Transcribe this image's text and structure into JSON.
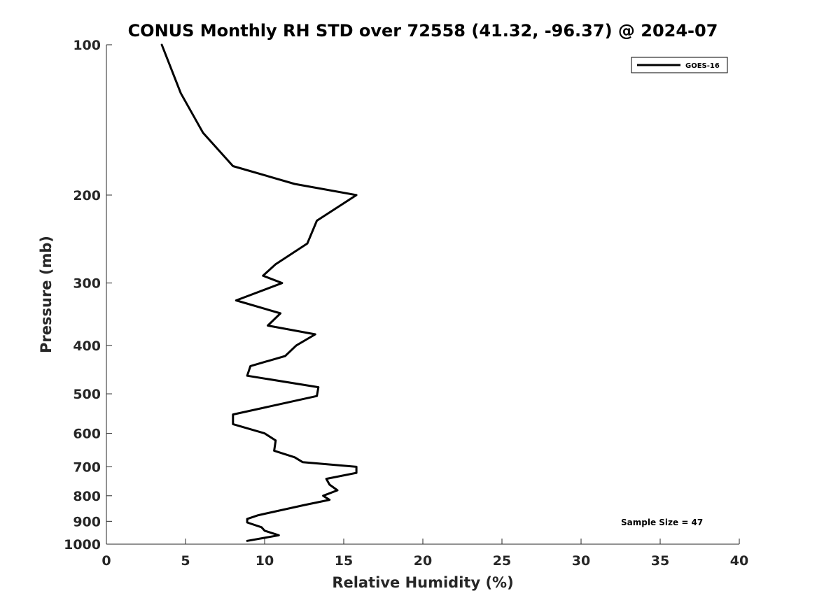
{
  "chart_data": {
    "type": "line",
    "title": "CONUS Monthly RH STD over 72558 (41.32, -96.37) @ 2024-07",
    "xlabel": "Relative Humidity (%)",
    "ylabel": "Pressure (mb)",
    "xlim": [
      0,
      40
    ],
    "ylim": [
      100,
      1000
    ],
    "y_scale": "log",
    "y_reversed": true,
    "x_ticks": [
      0,
      5,
      10,
      15,
      20,
      25,
      30,
      35,
      40
    ],
    "x_tick_labels": [
      "0",
      "5",
      "10",
      "15",
      "20",
      "25",
      "30",
      "35",
      "40"
    ],
    "y_ticks": [
      100,
      200,
      300,
      400,
      500,
      600,
      700,
      800,
      900,
      1000
    ],
    "y_tick_labels": [
      "100",
      "200",
      "300",
      "400",
      "500",
      "600",
      "700",
      "800",
      "900",
      "1000"
    ],
    "grid": false,
    "legend_position": "top-right",
    "annotation": "Sample Size = 47",
    "series": [
      {
        "name": "GOES-16",
        "color": "#000000",
        "points": [
          [
            3.5,
            100
          ],
          [
            4.7,
            125
          ],
          [
            6.1,
            150
          ],
          [
            8.0,
            175
          ],
          [
            11.9,
            190
          ],
          [
            15.8,
            200
          ],
          [
            13.3,
            225
          ],
          [
            12.7,
            250
          ],
          [
            10.7,
            275
          ],
          [
            9.9,
            290
          ],
          [
            11.1,
            300
          ],
          [
            8.2,
            325
          ],
          [
            11.0,
            345
          ],
          [
            10.2,
            365
          ],
          [
            13.2,
            380
          ],
          [
            12.0,
            400
          ],
          [
            11.3,
            420
          ],
          [
            9.1,
            440
          ],
          [
            8.9,
            460
          ],
          [
            13.4,
            485
          ],
          [
            13.3,
            505
          ],
          [
            10.9,
            525
          ],
          [
            8.0,
            550
          ],
          [
            8.0,
            575
          ],
          [
            10.0,
            600
          ],
          [
            10.7,
            620
          ],
          [
            10.6,
            650
          ],
          [
            11.9,
            670
          ],
          [
            12.4,
            685
          ],
          [
            15.8,
            700
          ],
          [
            15.8,
            720
          ],
          [
            13.9,
            740
          ],
          [
            14.1,
            760
          ],
          [
            14.6,
            780
          ],
          [
            13.7,
            800
          ],
          [
            14.1,
            815
          ],
          [
            12.5,
            835
          ],
          [
            9.6,
            875
          ],
          [
            8.9,
            890
          ],
          [
            8.9,
            905
          ],
          [
            9.8,
            925
          ],
          [
            10.0,
            940
          ],
          [
            10.9,
            960
          ],
          [
            8.9,
            985
          ]
        ]
      }
    ]
  }
}
